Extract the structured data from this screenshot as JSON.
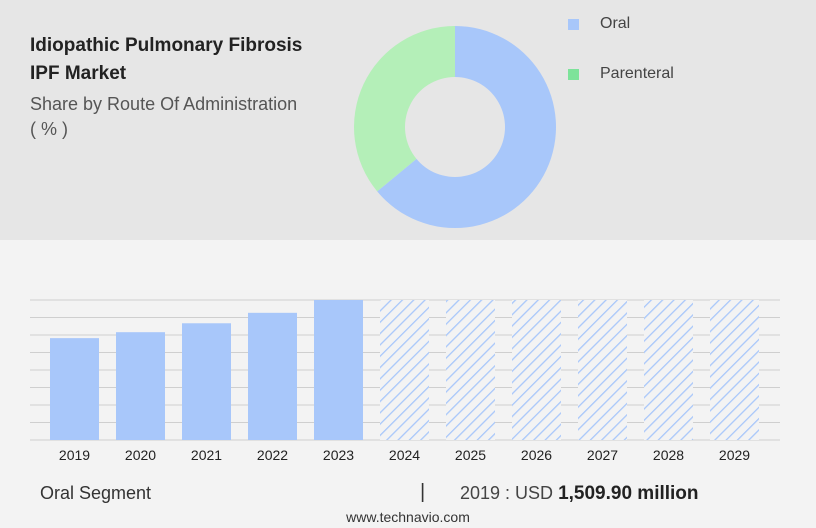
{
  "header": {
    "title_line1": "Idiopathic Pulmonary Fibrosis",
    "title_line2": "IPF Market",
    "subtitle_line1": "Share by Route Of Administration",
    "subtitle_line2": "( % )"
  },
  "legend": [
    {
      "label": "Oral",
      "color": "#a8c7fa"
    },
    {
      "label": "Parenteral",
      "color": "#7de39a"
    }
  ],
  "donut_colors": {
    "oral": "#a8c7fa",
    "parenteral": "#b4efb8"
  },
  "bar_colors": {
    "solid": "#a8c7fa",
    "hatch": "#a8c7fa",
    "grid": "#cfcfcf"
  },
  "footer": {
    "segment_label": "Oral Segment",
    "separator": "|",
    "year_prefix": "2019 : USD ",
    "value": "1,509.90 million",
    "source": "www.technavio.com"
  },
  "chart_data": [
    {
      "type": "pie",
      "title": "Idiopathic Pulmonary Fibrosis IPF Market",
      "subtitle": "Share by Route Of Administration ( % )",
      "categories": [
        "Oral",
        "Parenteral"
      ],
      "values": [
        64,
        36
      ]
    },
    {
      "type": "bar",
      "categories": [
        "2019",
        "2020",
        "2021",
        "2022",
        "2023",
        "2024",
        "2025",
        "2026",
        "2027",
        "2028",
        "2029"
      ],
      "values": [
        1509.9,
        1598,
        1730,
        1885,
        2075,
        2075,
        2075,
        2075,
        2075,
        2075,
        2075
      ],
      "forecast_from": "2024",
      "ylim": [
        0,
        2075
      ],
      "grid": true
    }
  ]
}
